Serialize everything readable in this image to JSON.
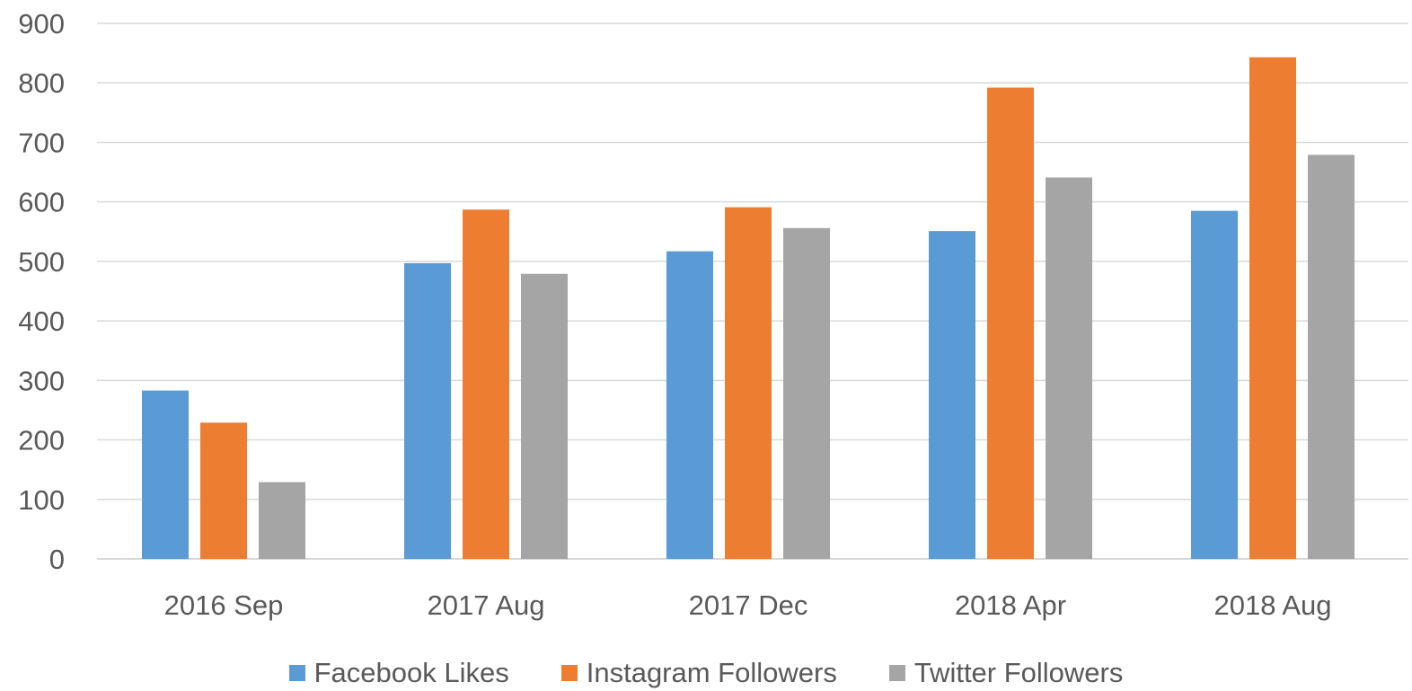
{
  "chart_data": {
    "type": "bar",
    "categories": [
      "2016 Sep",
      "2017 Aug",
      "2017 Dec",
      "2018 Apr",
      "2018 Aug"
    ],
    "series": [
      {
        "name": "Facebook Likes",
        "color": "#5B9BD5",
        "values": [
          283,
          497,
          517,
          551,
          585
        ]
      },
      {
        "name": "Instagram Followers",
        "color": "#ED7D31",
        "values": [
          229,
          587,
          591,
          792,
          843
        ]
      },
      {
        "name": "Twitter Followers",
        "color": "#A5A5A5",
        "values": [
          129,
          479,
          556,
          641,
          679
        ]
      }
    ],
    "y_ticks": [
      "0",
      "100",
      "200",
      "300",
      "400",
      "500",
      "600",
      "700",
      "800",
      "900"
    ],
    "ylim": [
      0,
      900
    ],
    "grid": true,
    "legend_position": "bottom",
    "gridline_color": "#D9D9D9"
  }
}
